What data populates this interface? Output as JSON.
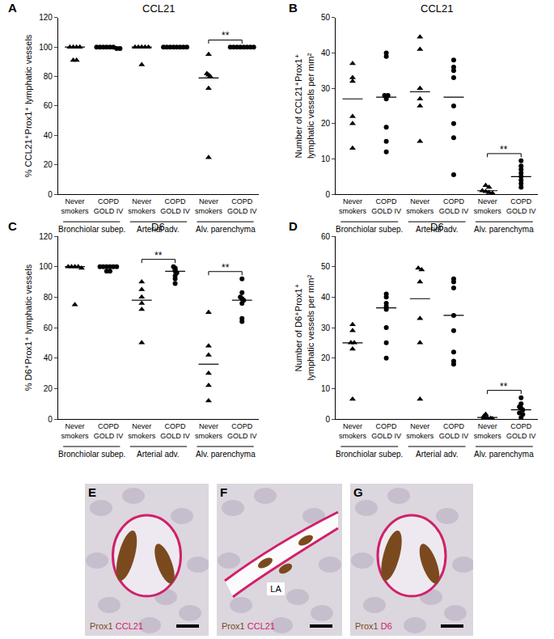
{
  "chart_data": [
    {
      "type": "scatter",
      "panel": "A",
      "title": "CCL21",
      "ylabel": "% CCL21⁺Prox1⁺ lymphatic vessels",
      "ylim": [
        0,
        120
      ],
      "yticks": [
        0,
        20,
        40,
        60,
        80,
        100,
        120
      ],
      "groups": [
        "Bronchiolar subep.",
        "Arterial adv.",
        "Alv. parenchyma"
      ],
      "categories": [
        "Never smokers",
        "COPD GOLD IV"
      ],
      "series": [
        {
          "name": "Never smokers",
          "marker": "triangle-up",
          "color": "#000000",
          "values": [
            [
              100,
              100,
              100,
              100,
              91,
              91
            ],
            [
              100,
              100,
              100,
              100,
              100,
              88
            ],
            [
              95,
              82,
              81,
              80,
              72,
              25
            ]
          ],
          "center": [
            100,
            100,
            79
          ]
        },
        {
          "name": "COPD GOLD IV",
          "marker": "circle",
          "color": "#000000",
          "values": [
            [
              100,
              100,
              100,
              100,
              100,
              100,
              99,
              99
            ],
            [
              100,
              100,
              100,
              100,
              100,
              100,
              100,
              100
            ],
            [
              100,
              100,
              100,
              100,
              100,
              100,
              100,
              100
            ]
          ],
          "center": [
            100,
            100,
            100
          ]
        }
      ],
      "significance": [
        {
          "group": "Alv. parenchyma",
          "label": "**"
        }
      ]
    },
    {
      "type": "scatter",
      "panel": "B",
      "title": "CCL21",
      "ylabel": "Number of CCL21⁺Prox1⁺\nlymphatic vessels per mm²",
      "ylim": [
        0,
        50
      ],
      "yticks": [
        0,
        10,
        20,
        30,
        40,
        50
      ],
      "groups": [
        "Bronchiolar subep.",
        "Arterial adv.",
        "Alv. parenchyma"
      ],
      "categories": [
        "Never smokers",
        "COPD GOLD IV"
      ],
      "series": [
        {
          "name": "Never smokers",
          "marker": "triangle-up",
          "color": "#000000",
          "values": [
            [
              37,
              33,
              32,
              22,
              20,
              13
            ],
            [
              44.5,
              41,
              30,
              27,
              25,
              15
            ],
            [
              2.5,
              2,
              1,
              0.8,
              0.5,
              0.3
            ]
          ],
          "center": [
            27,
            29,
            1
          ]
        },
        {
          "name": "COPD GOLD IV",
          "marker": "circle",
          "color": "#000000",
          "values": [
            [
              40,
              39,
              28,
              28,
              27,
              19,
              15,
              12
            ],
            [
              38,
              36,
              35,
              33,
              25,
              20,
              16,
              5.5
            ],
            [
              9.5,
              8,
              7,
              6,
              5,
              4,
              3,
              2
            ]
          ],
          "center": [
            27.5,
            27.5,
            5
          ]
        }
      ],
      "significance": [
        {
          "group": "Alv. parenchyma",
          "label": "**"
        }
      ]
    },
    {
      "type": "scatter",
      "panel": "C",
      "title": "D6",
      "ylabel": "% D6⁺Prox1⁺ lymphatic vessels",
      "ylim": [
        0,
        120
      ],
      "yticks": [
        0,
        20,
        40,
        60,
        80,
        100,
        120
      ],
      "groups": [
        "Bronchiolar subep.",
        "Arterial adv.",
        "Alv. parenchyma"
      ],
      "categories": [
        "Never smokers",
        "COPD GOLD IV"
      ],
      "series": [
        {
          "name": "Never smokers",
          "marker": "triangle-up",
          "color": "#000000",
          "values": [
            [
              100,
              100,
              100,
              100,
              99,
              75
            ],
            [
              90,
              85,
              80,
              76,
              72,
              50
            ],
            [
              70,
              48,
              42,
              30,
              22,
              12
            ]
          ],
          "center": [
            100,
            78,
            36
          ]
        },
        {
          "name": "COPD GOLD IV",
          "marker": "circle",
          "color": "#000000",
          "values": [
            [
              100,
              100,
              100,
              100,
              100,
              100,
              97,
              97
            ],
            [
              100,
              99,
              98,
              97,
              96,
              94,
              92,
              89
            ],
            [
              92,
              83,
              80,
              79,
              78,
              76,
              66,
              64
            ]
          ],
          "center": [
            100,
            97,
            78
          ]
        }
      ],
      "significance": [
        {
          "group": "Arterial adv.",
          "label": "**"
        },
        {
          "group": "Alv. parenchyma",
          "label": "**"
        }
      ]
    },
    {
      "type": "scatter",
      "panel": "D",
      "title": "D6",
      "ylabel": "Number of D6⁺Prox1⁺\nlymphatic vessels per mm²",
      "ylim": [
        0,
        60
      ],
      "yticks": [
        0,
        10,
        20,
        30,
        40,
        50,
        60
      ],
      "groups": [
        "Bronchiolar subep.",
        "Arterial adv.",
        "Alv. parenchyma"
      ],
      "categories": [
        "Never smokers",
        "COPD GOLD IV"
      ],
      "series": [
        {
          "name": "Never smokers",
          "marker": "triangle-up",
          "color": "#000000",
          "values": [
            [
              31,
              29,
              25,
              25,
              23,
              6.5
            ],
            [
              49.5,
              49,
              45,
              33,
              25,
              6.5
            ],
            [
              1.5,
              1,
              0.5,
              0.4,
              0.2,
              0.1
            ]
          ],
          "center": [
            25,
            39.5,
            0.5
          ]
        },
        {
          "name": "COPD GOLD IV",
          "marker": "circle",
          "color": "#000000",
          "values": [
            [
              41,
              40,
              38,
              37,
              36,
              30,
              25,
              20
            ],
            [
              46,
              45,
              43,
              34,
              29,
              22,
              19,
              18
            ],
            [
              7,
              5,
              4,
              3.5,
              3,
              2,
              1.5,
              0.5
            ]
          ],
          "center": [
            36.5,
            34,
            3
          ]
        }
      ],
      "significance": [
        {
          "group": "Alv. parenchyma",
          "label": "**"
        }
      ]
    }
  ],
  "images": [
    {
      "panel": "E",
      "labels": [
        "Prox1",
        "CCL21"
      ],
      "colors": [
        "#7a4a1e",
        "#d0206a"
      ]
    },
    {
      "panel": "F",
      "labels": [
        "Prox1",
        "CCL21"
      ],
      "colors": [
        "#7a4a1e",
        "#d0206a"
      ],
      "annotation": "LA"
    },
    {
      "panel": "G",
      "labels": [
        "Prox1",
        "D6"
      ],
      "colors": [
        "#7a4a1e",
        "#d0206a"
      ]
    }
  ]
}
